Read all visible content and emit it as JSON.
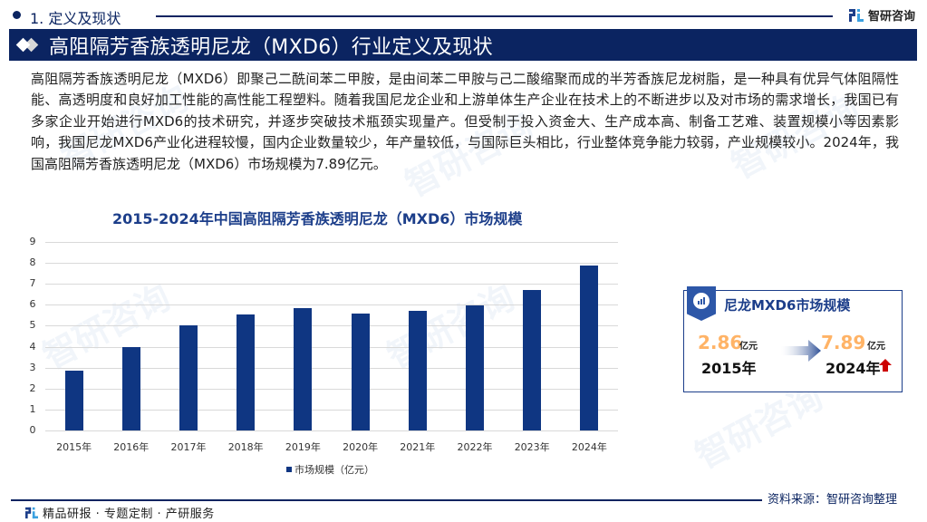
{
  "section": {
    "label": "1. 定义及现状"
  },
  "brand": {
    "name": "智研咨询",
    "logo_icon": "zhiyan-logo-icon"
  },
  "title_bar": {
    "icon": "double-diamond-icon",
    "title": "高阻隔芳香族透明尼龙（MXD6）行业定义及现状"
  },
  "paragraph": "高阻隔芳香族透明尼龙（MXD6）即聚己二酰间苯二甲胺，是由间苯二甲胺与己二酸缩聚而成的半芳香族尼龙树脂，是一种具有优异气体阻隔性能、高透明度和良好加工性能的高性能工程塑料。随着我国尼龙企业和上游单体生产企业在技术上的不断进步以及对市场的需求增长，我国已有多家企业开始进行MXD6的技术研究，并逐步突破技术瓶颈实现量产。但受制于投入资金大、生产成本高、制备工艺难、装置规模小等因素影响，我国尼龙MXD6产业化进程较慢，国内企业数量较少，年产量较低，与国际巨头相比，行业整体竞争能力较弱，产业规模较小。2024年，我国高阻隔芳香族透明尼龙（MXD6）市场规模为7.89亿元。",
  "chart_data": {
    "type": "bar",
    "title": "2015-2024年中国高阻隔芳香族透明尼龙（MXD6）市场规模",
    "categories": [
      "2015年",
      "2016年",
      "2017年",
      "2018年",
      "2019年",
      "2020年",
      "2021年",
      "2022年",
      "2023年",
      "2024年"
    ],
    "series": [
      {
        "name": "市场规模（亿元）",
        "values": [
          2.86,
          3.96,
          5.0,
          5.52,
          5.83,
          5.57,
          5.7,
          5.96,
          6.7,
          7.89
        ],
        "color": "#0f3682"
      }
    ],
    "xlabel": "",
    "ylabel": "",
    "ylim": [
      0,
      9
    ],
    "yticks": [
      "9",
      "8",
      "7",
      "6",
      "5",
      "4",
      "3",
      "2",
      "1",
      "0"
    ],
    "grid": true,
    "legend_position": "bottom"
  },
  "summary_card": {
    "icon": "chart-circle-icon",
    "title": "尼龙MXD6市场规模",
    "start": {
      "value": "2.86",
      "unit": "亿元",
      "year": "2015年"
    },
    "end": {
      "value": "7.89",
      "unit": "亿元",
      "year": "2024年"
    },
    "arrow_icon": "right-arrow-icon",
    "trend_icon": "up-arrow-icon",
    "value_color": "#ffb366",
    "trend_color": "#cc0000"
  },
  "footer": {
    "tagline": "精品研报 · 专题定制 · 产研服务",
    "source": "资料来源：智研咨询整理"
  },
  "colors": {
    "primary": "#0b2461",
    "bar": "#0f3682",
    "accent": "#1c3e8a"
  }
}
